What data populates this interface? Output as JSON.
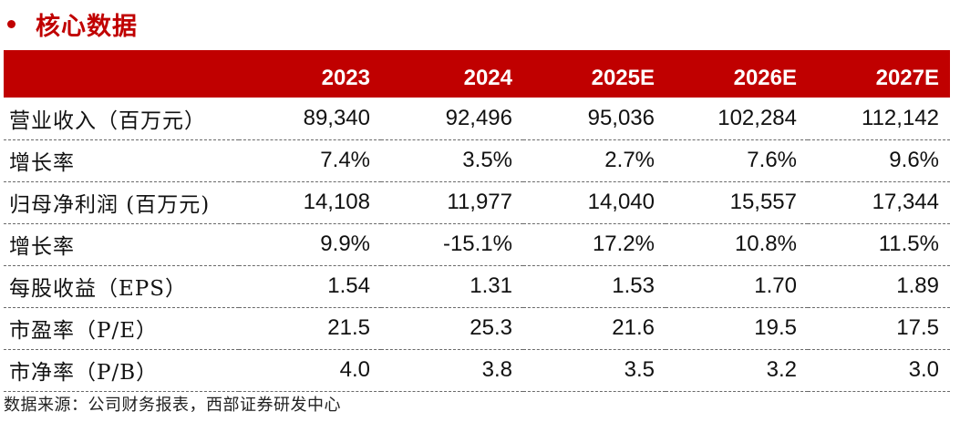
{
  "title": "核心数据",
  "table": {
    "headers": [
      "2023",
      "2024",
      "2025E",
      "2026E",
      "2027E"
    ],
    "rows": [
      {
        "label": "营业收入（百万元）",
        "values": [
          "89,340",
          "92,496",
          "95,036",
          "102,284",
          "112,142"
        ]
      },
      {
        "label": "增长率",
        "values": [
          "7.4%",
          "3.5%",
          "2.7%",
          "7.6%",
          "9.6%"
        ]
      },
      {
        "label": "归母净利润 (百万元)",
        "values": [
          "14,108",
          "11,977",
          "14,040",
          "15,557",
          "17,344"
        ]
      },
      {
        "label": "增长率",
        "values": [
          "9.9%",
          "-15.1%",
          "17.2%",
          "10.8%",
          "11.5%"
        ]
      },
      {
        "label": "每股收益（EPS）",
        "values": [
          "1.54",
          "1.31",
          "1.53",
          "1.70",
          "1.89"
        ]
      },
      {
        "label": "市盈率（P/E）",
        "values": [
          "21.5",
          "25.3",
          "21.6",
          "19.5",
          "17.5"
        ]
      },
      {
        "label": "市净率（P/B）",
        "values": [
          "4.0",
          "3.8",
          "3.5",
          "3.2",
          "3.0"
        ]
      }
    ]
  },
  "source": "数据来源：公司财务报表，西部证券研发中心",
  "colors": {
    "accent": "#c00000",
    "header_text": "#ffffff"
  }
}
